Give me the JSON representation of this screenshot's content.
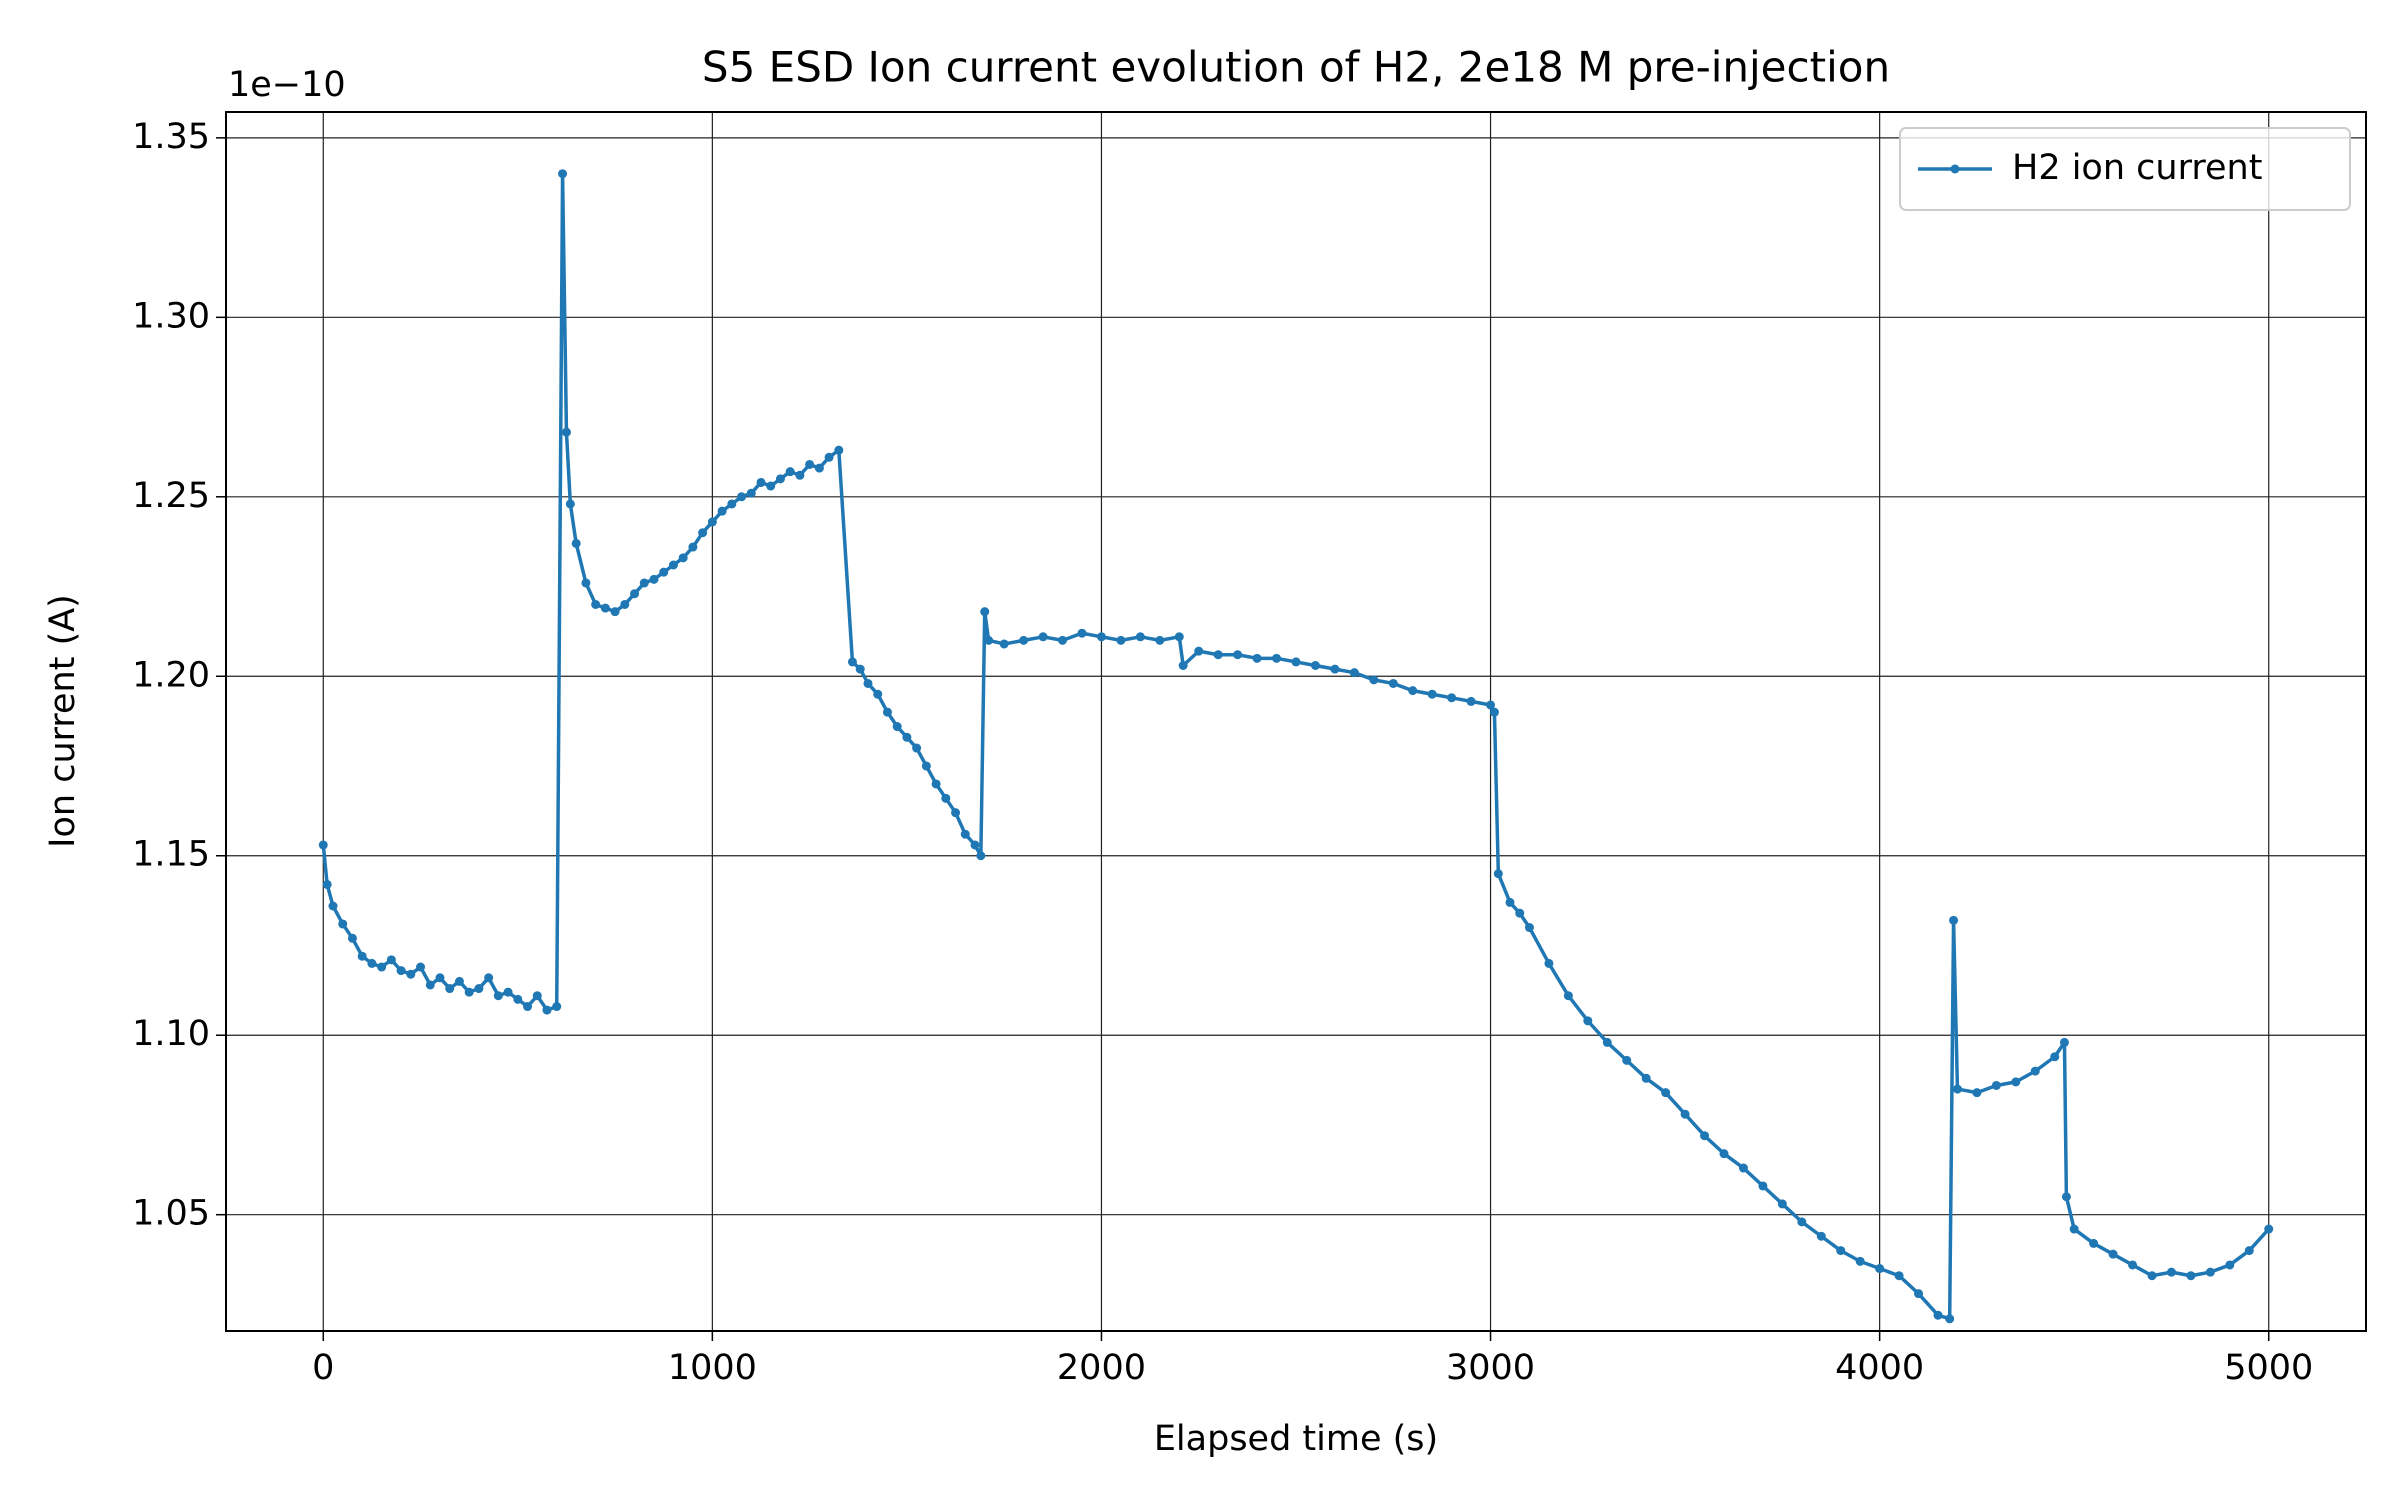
{
  "chart_data": {
    "type": "line",
    "title": "S5 ESD Ion current evolution of H2, 2e18 M pre-injection",
    "x_label": "Elapsed time (s)",
    "y_label": "Ion current (A)",
    "y_offset_label": "1e−10",
    "x": [
      0,
      10,
      25,
      50,
      75,
      100,
      125,
      150,
      175,
      200,
      225,
      250,
      275,
      300,
      325,
      350,
      375,
      400,
      425,
      450,
      475,
      500,
      525,
      550,
      575,
      600,
      615,
      625,
      635,
      650,
      675,
      700,
      725,
      750,
      775,
      800,
      825,
      850,
      875,
      900,
      925,
      950,
      975,
      1000,
      1025,
      1050,
      1075,
      1100,
      1125,
      1150,
      1175,
      1200,
      1225,
      1250,
      1275,
      1300,
      1325,
      1360,
      1380,
      1400,
      1425,
      1450,
      1475,
      1500,
      1525,
      1550,
      1575,
      1600,
      1625,
      1650,
      1675,
      1690,
      1700,
      1710,
      1750,
      1800,
      1850,
      1900,
      1950,
      2000,
      2050,
      2100,
      2150,
      2200,
      2210,
      2250,
      2300,
      2350,
      2400,
      2450,
      2500,
      2550,
      2600,
      2650,
      2700,
      2750,
      2800,
      2850,
      2900,
      2950,
      3000,
      3010,
      3020,
      3050,
      3075,
      3100,
      3150,
      3200,
      3250,
      3300,
      3350,
      3400,
      3450,
      3500,
      3550,
      3600,
      3650,
      3700,
      3750,
      3800,
      3850,
      3900,
      3950,
      4000,
      4050,
      4100,
      4150,
      4180,
      4190,
      4200,
      4250,
      4300,
      4350,
      4400,
      4450,
      4475,
      4480,
      4500,
      4550,
      4600,
      4650,
      4700,
      4750,
      4800,
      4850,
      4900,
      4950,
      5000
    ],
    "series": [
      {
        "name": "H2 ion current",
        "color": "#1f77b4",
        "values": [
          1.153,
          1.142,
          1.136,
          1.131,
          1.127,
          1.122,
          1.12,
          1.119,
          1.121,
          1.118,
          1.117,
          1.119,
          1.114,
          1.116,
          1.113,
          1.115,
          1.112,
          1.113,
          1.116,
          1.111,
          1.112,
          1.11,
          1.108,
          1.111,
          1.107,
          1.108,
          1.34,
          1.268,
          1.248,
          1.237,
          1.226,
          1.22,
          1.219,
          1.218,
          1.22,
          1.223,
          1.226,
          1.227,
          1.229,
          1.231,
          1.233,
          1.236,
          1.24,
          1.243,
          1.246,
          1.248,
          1.25,
          1.251,
          1.254,
          1.253,
          1.255,
          1.257,
          1.256,
          1.259,
          1.258,
          1.261,
          1.263,
          1.204,
          1.202,
          1.198,
          1.195,
          1.19,
          1.186,
          1.183,
          1.18,
          1.175,
          1.17,
          1.166,
          1.162,
          1.156,
          1.153,
          1.15,
          1.218,
          1.21,
          1.209,
          1.21,
          1.211,
          1.21,
          1.212,
          1.211,
          1.21,
          1.211,
          1.21,
          1.211,
          1.203,
          1.207,
          1.206,
          1.206,
          1.205,
          1.205,
          1.204,
          1.203,
          1.202,
          1.201,
          1.199,
          1.198,
          1.196,
          1.195,
          1.194,
          1.193,
          1.192,
          1.19,
          1.145,
          1.137,
          1.134,
          1.13,
          1.12,
          1.111,
          1.104,
          1.098,
          1.093,
          1.088,
          1.084,
          1.078,
          1.072,
          1.067,
          1.063,
          1.058,
          1.053,
          1.048,
          1.044,
          1.04,
          1.037,
          1.035,
          1.033,
          1.028,
          1.022,
          1.021,
          1.132,
          1.085,
          1.084,
          1.086,
          1.087,
          1.09,
          1.094,
          1.098,
          1.055,
          1.046,
          1.042,
          1.039,
          1.036,
          1.033,
          1.034,
          1.033,
          1.034,
          1.036,
          1.04,
          1.046
        ]
      }
    ],
    "xlim": [
      -250,
      5250
    ],
    "ylim": [
      1.0176,
      1.3572
    ],
    "xticks": [
      0,
      1000,
      2000,
      3000,
      4000,
      5000
    ],
    "yticks": [
      1.05,
      {
        "value": 1.1,
        "label": "1.10"
      },
      1.15,
      {
        "value": 1.2,
        "label": "1.20"
      },
      1.25,
      {
        "value": 1.3,
        "label": "1.30"
      },
      1.35
    ],
    "grid": true,
    "legend": "upper right"
  }
}
